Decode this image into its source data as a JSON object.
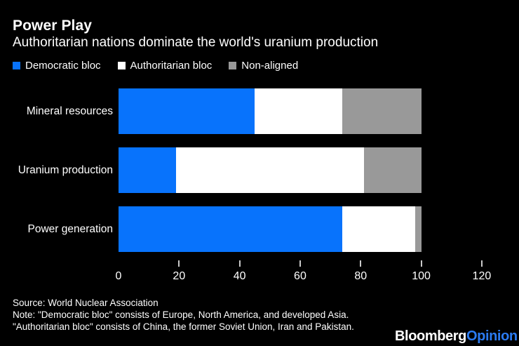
{
  "header": {
    "title": "Power Play",
    "subtitle": "Authoritarian nations dominate the world's uranium production"
  },
  "legend": [
    {
      "label": "Democratic bloc",
      "color": "#0873fc"
    },
    {
      "label": "Authoritarian bloc",
      "color": "#ffffff"
    },
    {
      "label": "Non-aligned",
      "color": "#999999"
    }
  ],
  "chart_data": {
    "type": "bar",
    "orientation": "horizontal",
    "stacked": true,
    "categories": [
      "Mineral resources",
      "Uranium production",
      "Power generation"
    ],
    "series": [
      {
        "name": "Democratic bloc",
        "color": "#0873fc",
        "values": [
          45,
          19,
          74
        ]
      },
      {
        "name": "Authoritarian bloc",
        "color": "#ffffff",
        "values": [
          29,
          62,
          24
        ]
      },
      {
        "name": "Non-aligned",
        "color": "#999999",
        "values": [
          26,
          19,
          2
        ]
      }
    ],
    "xlim": [
      0,
      120
    ],
    "x_ticks": [
      0,
      20,
      40,
      60,
      80,
      100,
      120
    ],
    "grid": false,
    "legend_position": "top"
  },
  "footer": {
    "source": "Source: World Nuclear Association",
    "note_line1": "Note: \"Democratic bloc\" consists of Europe, North America, and developed Asia.",
    "note_line2": "\"Authoritarian bloc\" consists of China, the former Soviet Union, Iran and Pakistan.",
    "logo": {
      "bloomberg": "Bloomberg",
      "opinion": "Opinion"
    }
  },
  "colors": {
    "background": "#000000",
    "text": "#ffffff",
    "accent_blue": "#0873fc",
    "nonaligned_gray": "#999999",
    "logo_opinion_blue": "#2b7bf2",
    "tick": "#c9c9c9"
  }
}
